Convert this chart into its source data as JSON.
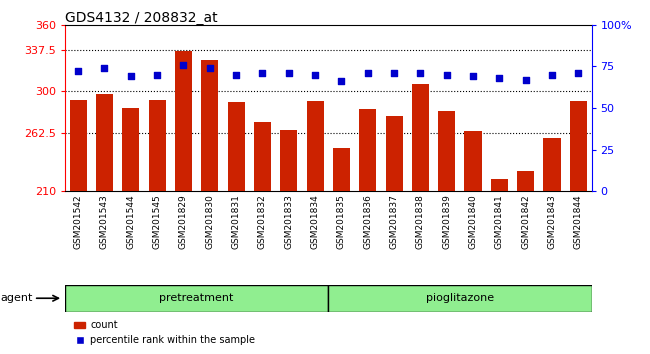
{
  "title": "GDS4132 / 208832_at",
  "samples": [
    "GSM201542",
    "GSM201543",
    "GSM201544",
    "GSM201545",
    "GSM201829",
    "GSM201830",
    "GSM201831",
    "GSM201832",
    "GSM201833",
    "GSM201834",
    "GSM201835",
    "GSM201836",
    "GSM201837",
    "GSM201838",
    "GSM201839",
    "GSM201840",
    "GSM201841",
    "GSM201842",
    "GSM201843",
    "GSM201844"
  ],
  "counts": [
    292,
    298,
    285,
    292,
    336,
    328,
    290,
    272,
    265,
    291,
    249,
    284,
    278,
    307,
    282,
    264,
    221,
    228,
    258,
    291
  ],
  "percentiles": [
    72,
    74,
    69,
    70,
    76,
    74,
    70,
    71,
    71,
    70,
    66,
    71,
    71,
    71,
    70,
    69,
    68,
    67,
    70,
    71
  ],
  "ylim_left": [
    210,
    360
  ],
  "ylim_right": [
    0,
    100
  ],
  "yticks_left": [
    210,
    262.5,
    300,
    337.5,
    360
  ],
  "ytick_labels_left": [
    "210",
    "262.5",
    "300",
    "337.5",
    "360"
  ],
  "yticks_right": [
    0,
    25,
    50,
    75,
    100
  ],
  "ytick_labels_right": [
    "0",
    "25",
    "50",
    "75",
    "100%"
  ],
  "bar_color": "#cc2200",
  "dot_color": "#0000cc",
  "grid_lines": [
    262.5,
    300,
    337.5
  ],
  "legend_count": "count",
  "legend_percentile": "percentile rank within the sample",
  "label_bg": "#c8c8c8",
  "plot_bg": "#ffffff",
  "group_colors": [
    "#90ee90",
    "#90ee90"
  ],
  "group_labels": [
    "pretreatment",
    "pioglitazone"
  ],
  "group_sizes": [
    10,
    10
  ],
  "title_fontsize": 10,
  "axis_fontsize": 8,
  "label_fontsize": 6.5,
  "group_fontsize": 8
}
